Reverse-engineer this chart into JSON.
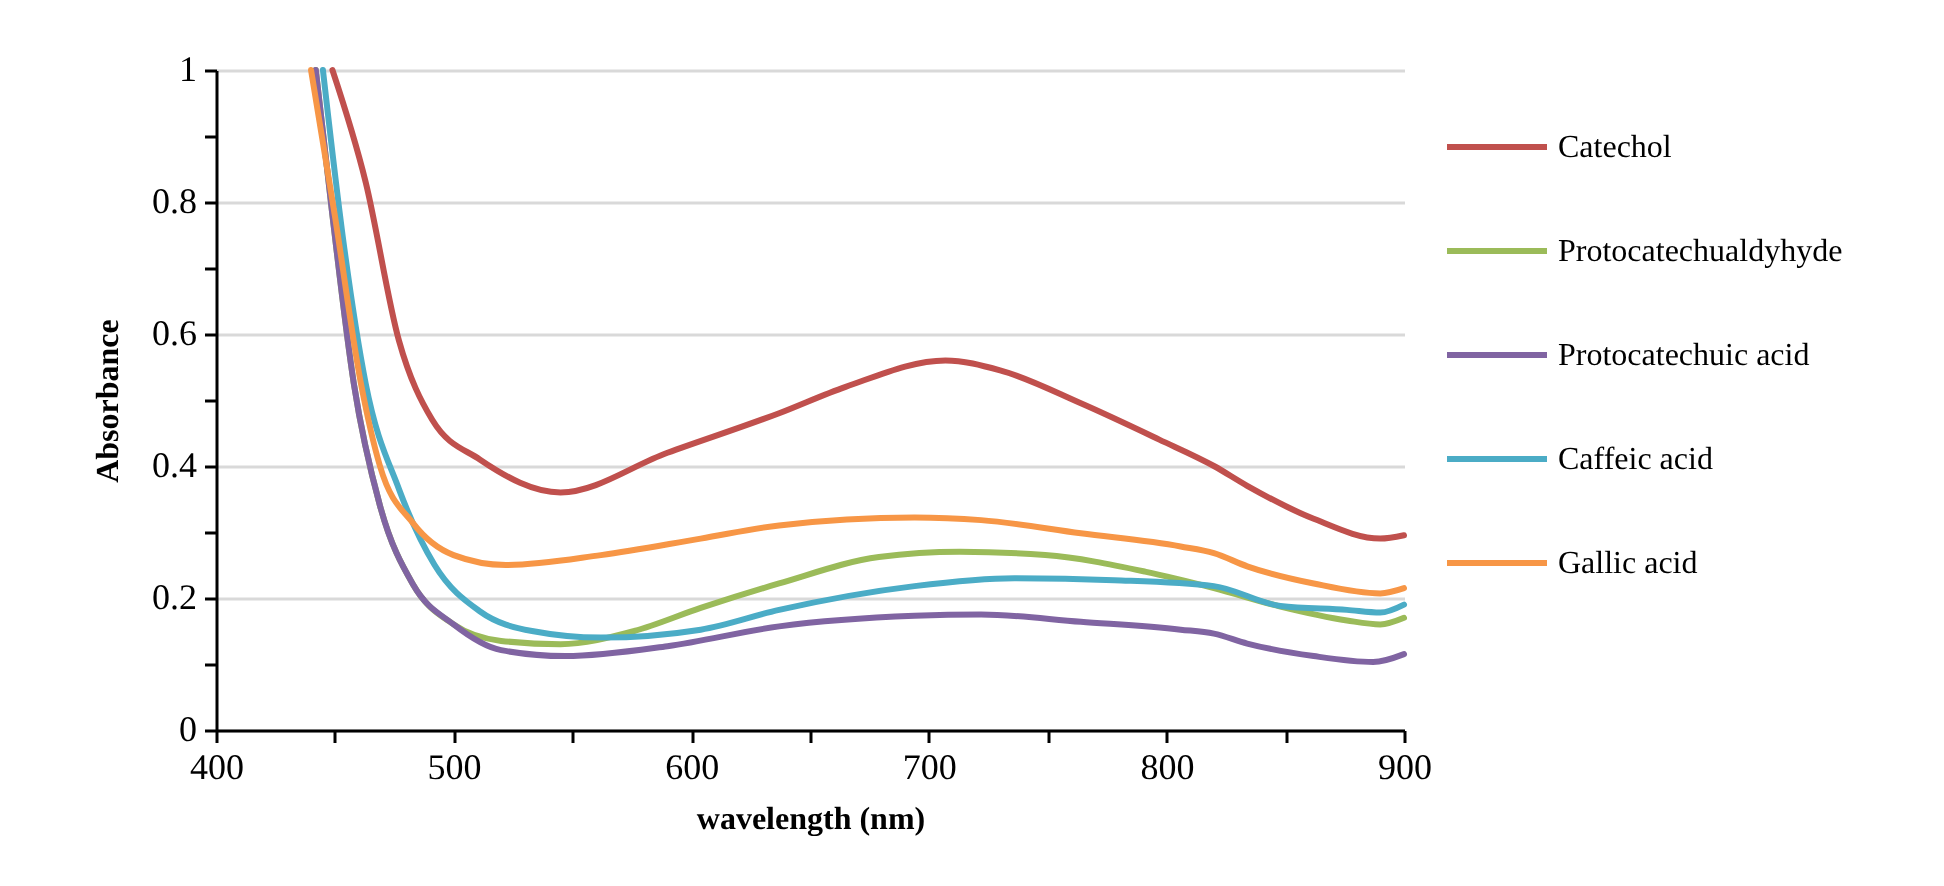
{
  "chart_data": {
    "type": "line",
    "xlabel": "wavelength (nm)",
    "ylabel": "Absorbance",
    "xlim": [
      400,
      900
    ],
    "ylim": [
      0,
      1
    ],
    "xticks": [
      400,
      {
        "value": 450,
        "label": null
      },
      500,
      {
        "value": 550,
        "label": null
      },
      600,
      {
        "value": 650,
        "label": null
      },
      700,
      {
        "value": 750,
        "label": null
      },
      800,
      {
        "value": 850,
        "label": null
      },
      900
    ],
    "yticks": [
      0,
      {
        "value": 0.1,
        "label": null
      },
      0.2,
      {
        "value": 0.3,
        "label": null
      },
      0.4,
      {
        "value": 0.5,
        "label": null
      },
      0.6,
      {
        "value": 0.7,
        "label": null
      },
      0.8,
      {
        "value": 0.9,
        "label": null
      },
      1
    ],
    "grid": "y",
    "legend": "right",
    "line_style": "solid",
    "marker": "none",
    "series": [
      {
        "name": "Catechol",
        "color": "#c0504d",
        "x": [
          449,
          463,
          477,
          491,
          511,
          545,
          590,
          637,
          665,
          707,
          730,
          764,
          797,
          820,
          834,
          862,
          890,
          900
        ],
        "values": [
          1,
          0.83,
          0.59,
          0.47,
          0.41,
          0.36,
          0.42,
          0.48,
          0.52,
          0.56,
          0.545,
          0.495,
          0.44,
          0.4,
          0.37,
          0.32,
          0.29,
          0.295
        ]
      },
      {
        "name": "Protocatechualdyhyde",
        "color": "#9bbb59",
        "x": [
          442,
          449,
          458,
          469,
          483,
          500,
          520,
          545,
          576,
          604,
          637,
          679,
          713,
          749,
          791,
          820,
          848,
          876,
          890,
          900
        ],
        "values": [
          1,
          0.78,
          0.525,
          0.34,
          0.22,
          0.16,
          0.135,
          0.13,
          0.15,
          0.185,
          0.222,
          0.262,
          0.27,
          0.265,
          0.24,
          0.215,
          0.187,
          0.166,
          0.16,
          0.17
        ]
      },
      {
        "name": "Protocatechuic acid",
        "color": "#8064a2",
        "x": [
          442,
          449,
          458,
          469,
          483,
          500,
          520,
          547,
          590,
          637,
          694,
          722,
          764,
          806,
          820,
          834,
          862,
          887,
          900
        ],
        "values": [
          1,
          0.78,
          0.525,
          0.34,
          0.22,
          0.16,
          0.121,
          0.112,
          0.127,
          0.157,
          0.173,
          0.175,
          0.164,
          0.152,
          0.146,
          0.131,
          0.112,
          0.103,
          0.115
        ]
      },
      {
        "name": "Caffeic acid",
        "color": "#4bacc6",
        "x": [
          445,
          454,
          463,
          477,
          492,
          511,
          533,
          562,
          604,
          637,
          694,
          736,
          778,
          820,
          848,
          876,
          890,
          900
        ],
        "values": [
          1,
          0.73,
          0.525,
          0.365,
          0.25,
          0.18,
          0.15,
          0.14,
          0.152,
          0.182,
          0.218,
          0.23,
          0.227,
          0.218,
          0.188,
          0.182,
          0.178,
          0.19
        ]
      },
      {
        "name": "Gallic acid",
        "color": "#f79646",
        "x": [
          440,
          450,
          461,
          469,
          483,
          500,
          522,
          562,
          604,
          637,
          694,
          722,
          764,
          806,
          820,
          834,
          862,
          890,
          900
        ],
        "values": [
          1,
          0.78,
          0.525,
          0.4,
          0.313,
          0.265,
          0.25,
          0.265,
          0.29,
          0.31,
          0.322,
          0.318,
          0.298,
          0.278,
          0.268,
          0.248,
          0.222,
          0.207,
          0.215
        ]
      }
    ]
  }
}
